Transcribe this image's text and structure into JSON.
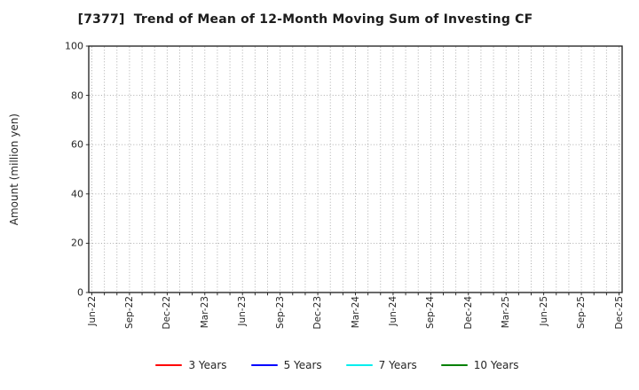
{
  "chart_data": {
    "type": "line",
    "title": "[7377]  Trend of Mean of 12-Month Moving Sum of Investing CF",
    "xlabel": "",
    "ylabel": "Amount (million yen)",
    "ylim": [
      0,
      100
    ],
    "yticks": [
      0,
      20,
      40,
      60,
      80,
      100
    ],
    "x_tick_labels": [
      "Jun-22",
      "Sep-22",
      "Dec-22",
      "Mar-23",
      "Jun-23",
      "Sep-23",
      "Dec-23",
      "Mar-24",
      "Jun-24",
      "Sep-24",
      "Dec-24",
      "Mar-25",
      "Jun-25",
      "Sep-25",
      "Dec-25"
    ],
    "x_months_total": 43,
    "x_label_every_n_months": 3,
    "grid": "dotted",
    "grid_color": "#a3a3a3",
    "axis_color": "#1a1a1a",
    "legend_position": "bottom-center",
    "series": [
      {
        "name": "3 Years",
        "color": "#ff0000",
        "values": []
      },
      {
        "name": "5 Years",
        "color": "#0000ff",
        "values": []
      },
      {
        "name": "7 Years",
        "color": "#00eeee",
        "values": []
      },
      {
        "name": "10 Years",
        "color": "#008000",
        "values": []
      }
    ]
  }
}
